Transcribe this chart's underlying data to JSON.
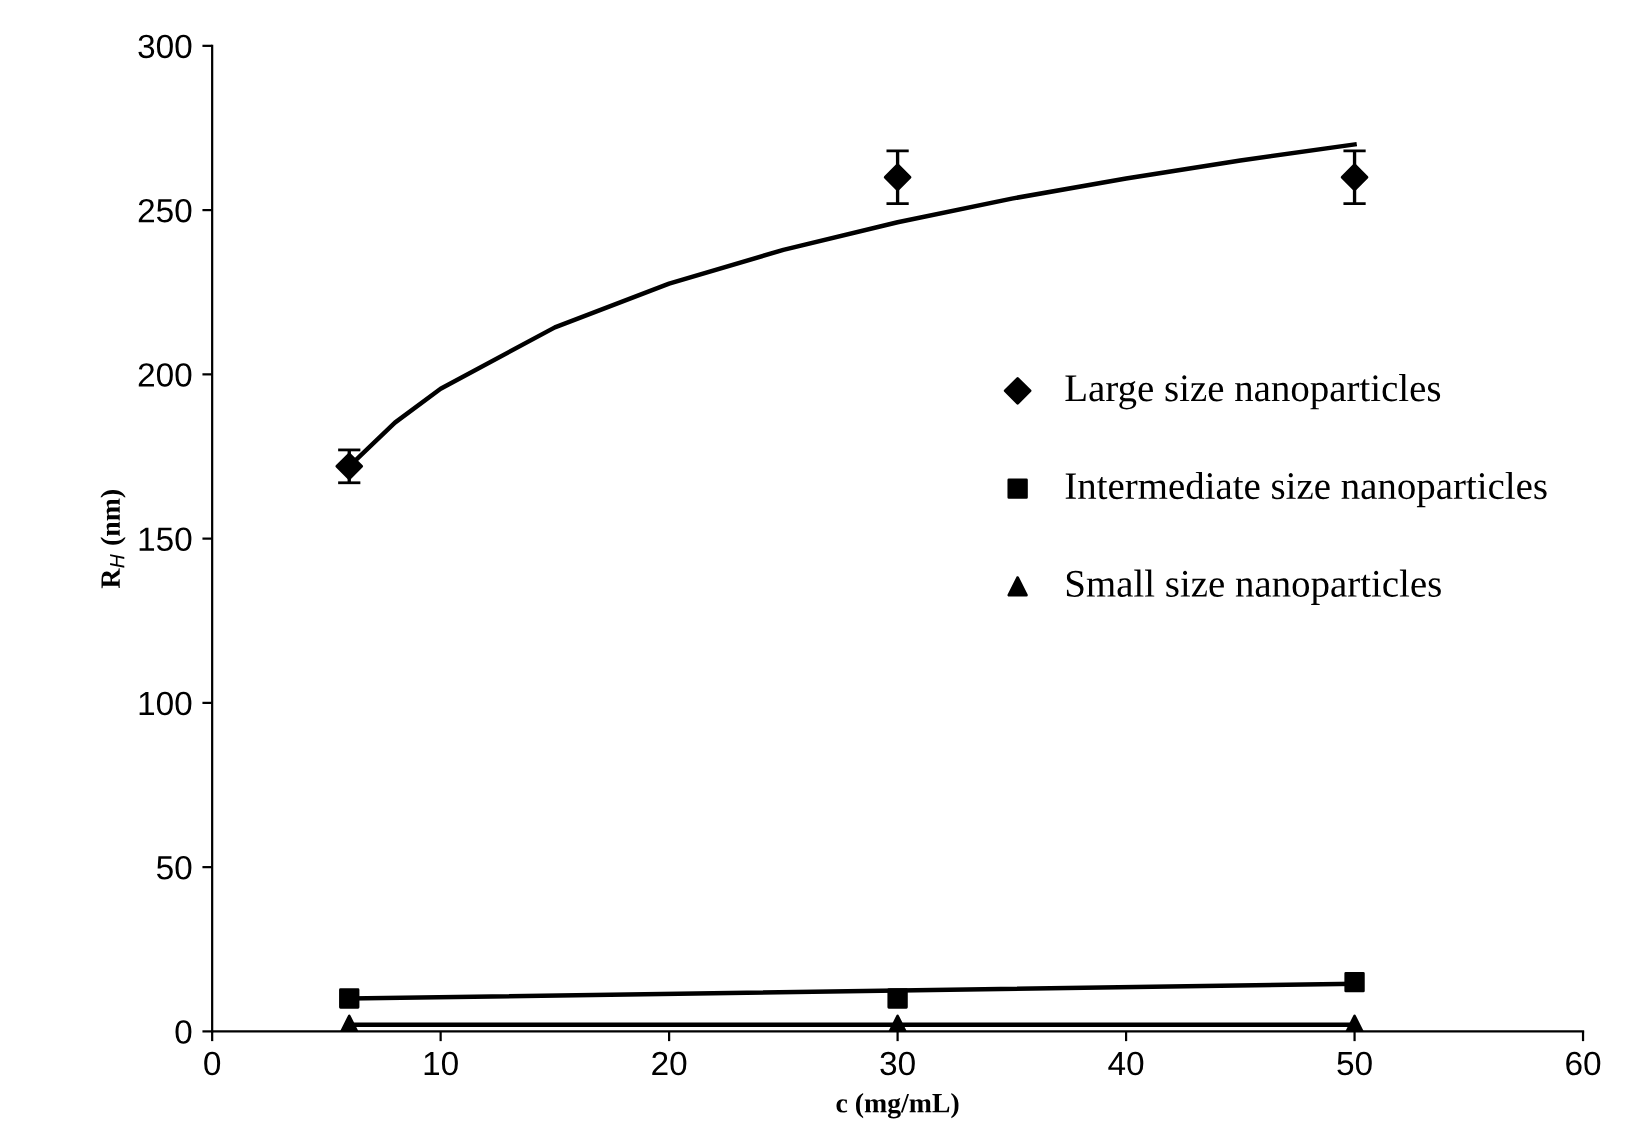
{
  "chart_data": {
    "type": "scatter",
    "xlabel": "c (mg/mL)",
    "ylabel": "R$_{H}$ (nm)",
    "xlim": [
      0,
      60
    ],
    "xticks": [
      0,
      10,
      20,
      30,
      40,
      50,
      60
    ],
    "ylim": [
      0,
      300
    ],
    "yticks": [
      0,
      50,
      100,
      150,
      200,
      250,
      300
    ],
    "grid": false,
    "legend": "right",
    "x": [
      6,
      30,
      50
    ],
    "series": [
      {
        "name": "Large size nanoparticles",
        "color": "#000000",
        "marker": "diamond",
        "values": [
          172,
          260,
          260
        ],
        "errors": [
          5,
          8,
          8
        ]
      },
      {
        "name": "Intermediate size nanoparticles",
        "color": "#000000",
        "marker": "square",
        "values": [
          10,
          10,
          15
        ]
      },
      {
        "name": "Small size nanoparticles",
        "color": "#000000",
        "marker": "triangle",
        "values": [
          2,
          2,
          2
        ]
      },
      {
        "type": "line",
        "color": "#000000",
        "x": [
          6,
          8,
          10,
          15,
          20,
          25,
          30,
          35,
          40,
          45,
          50
        ],
        "values": [
          172,
          185.3,
          195.6,
          214.3,
          227.6,
          237.9,
          246.3,
          253.5,
          259.6,
          265.1,
          270
        ]
      },
      {
        "type": "line",
        "color": "#000000",
        "x": [
          6,
          50
        ],
        "values": [
          10,
          14.5
        ]
      },
      {
        "type": "line",
        "color": "#000000",
        "x": [
          6,
          50
        ],
        "values": [
          2,
          2
        ]
      }
    ]
  }
}
